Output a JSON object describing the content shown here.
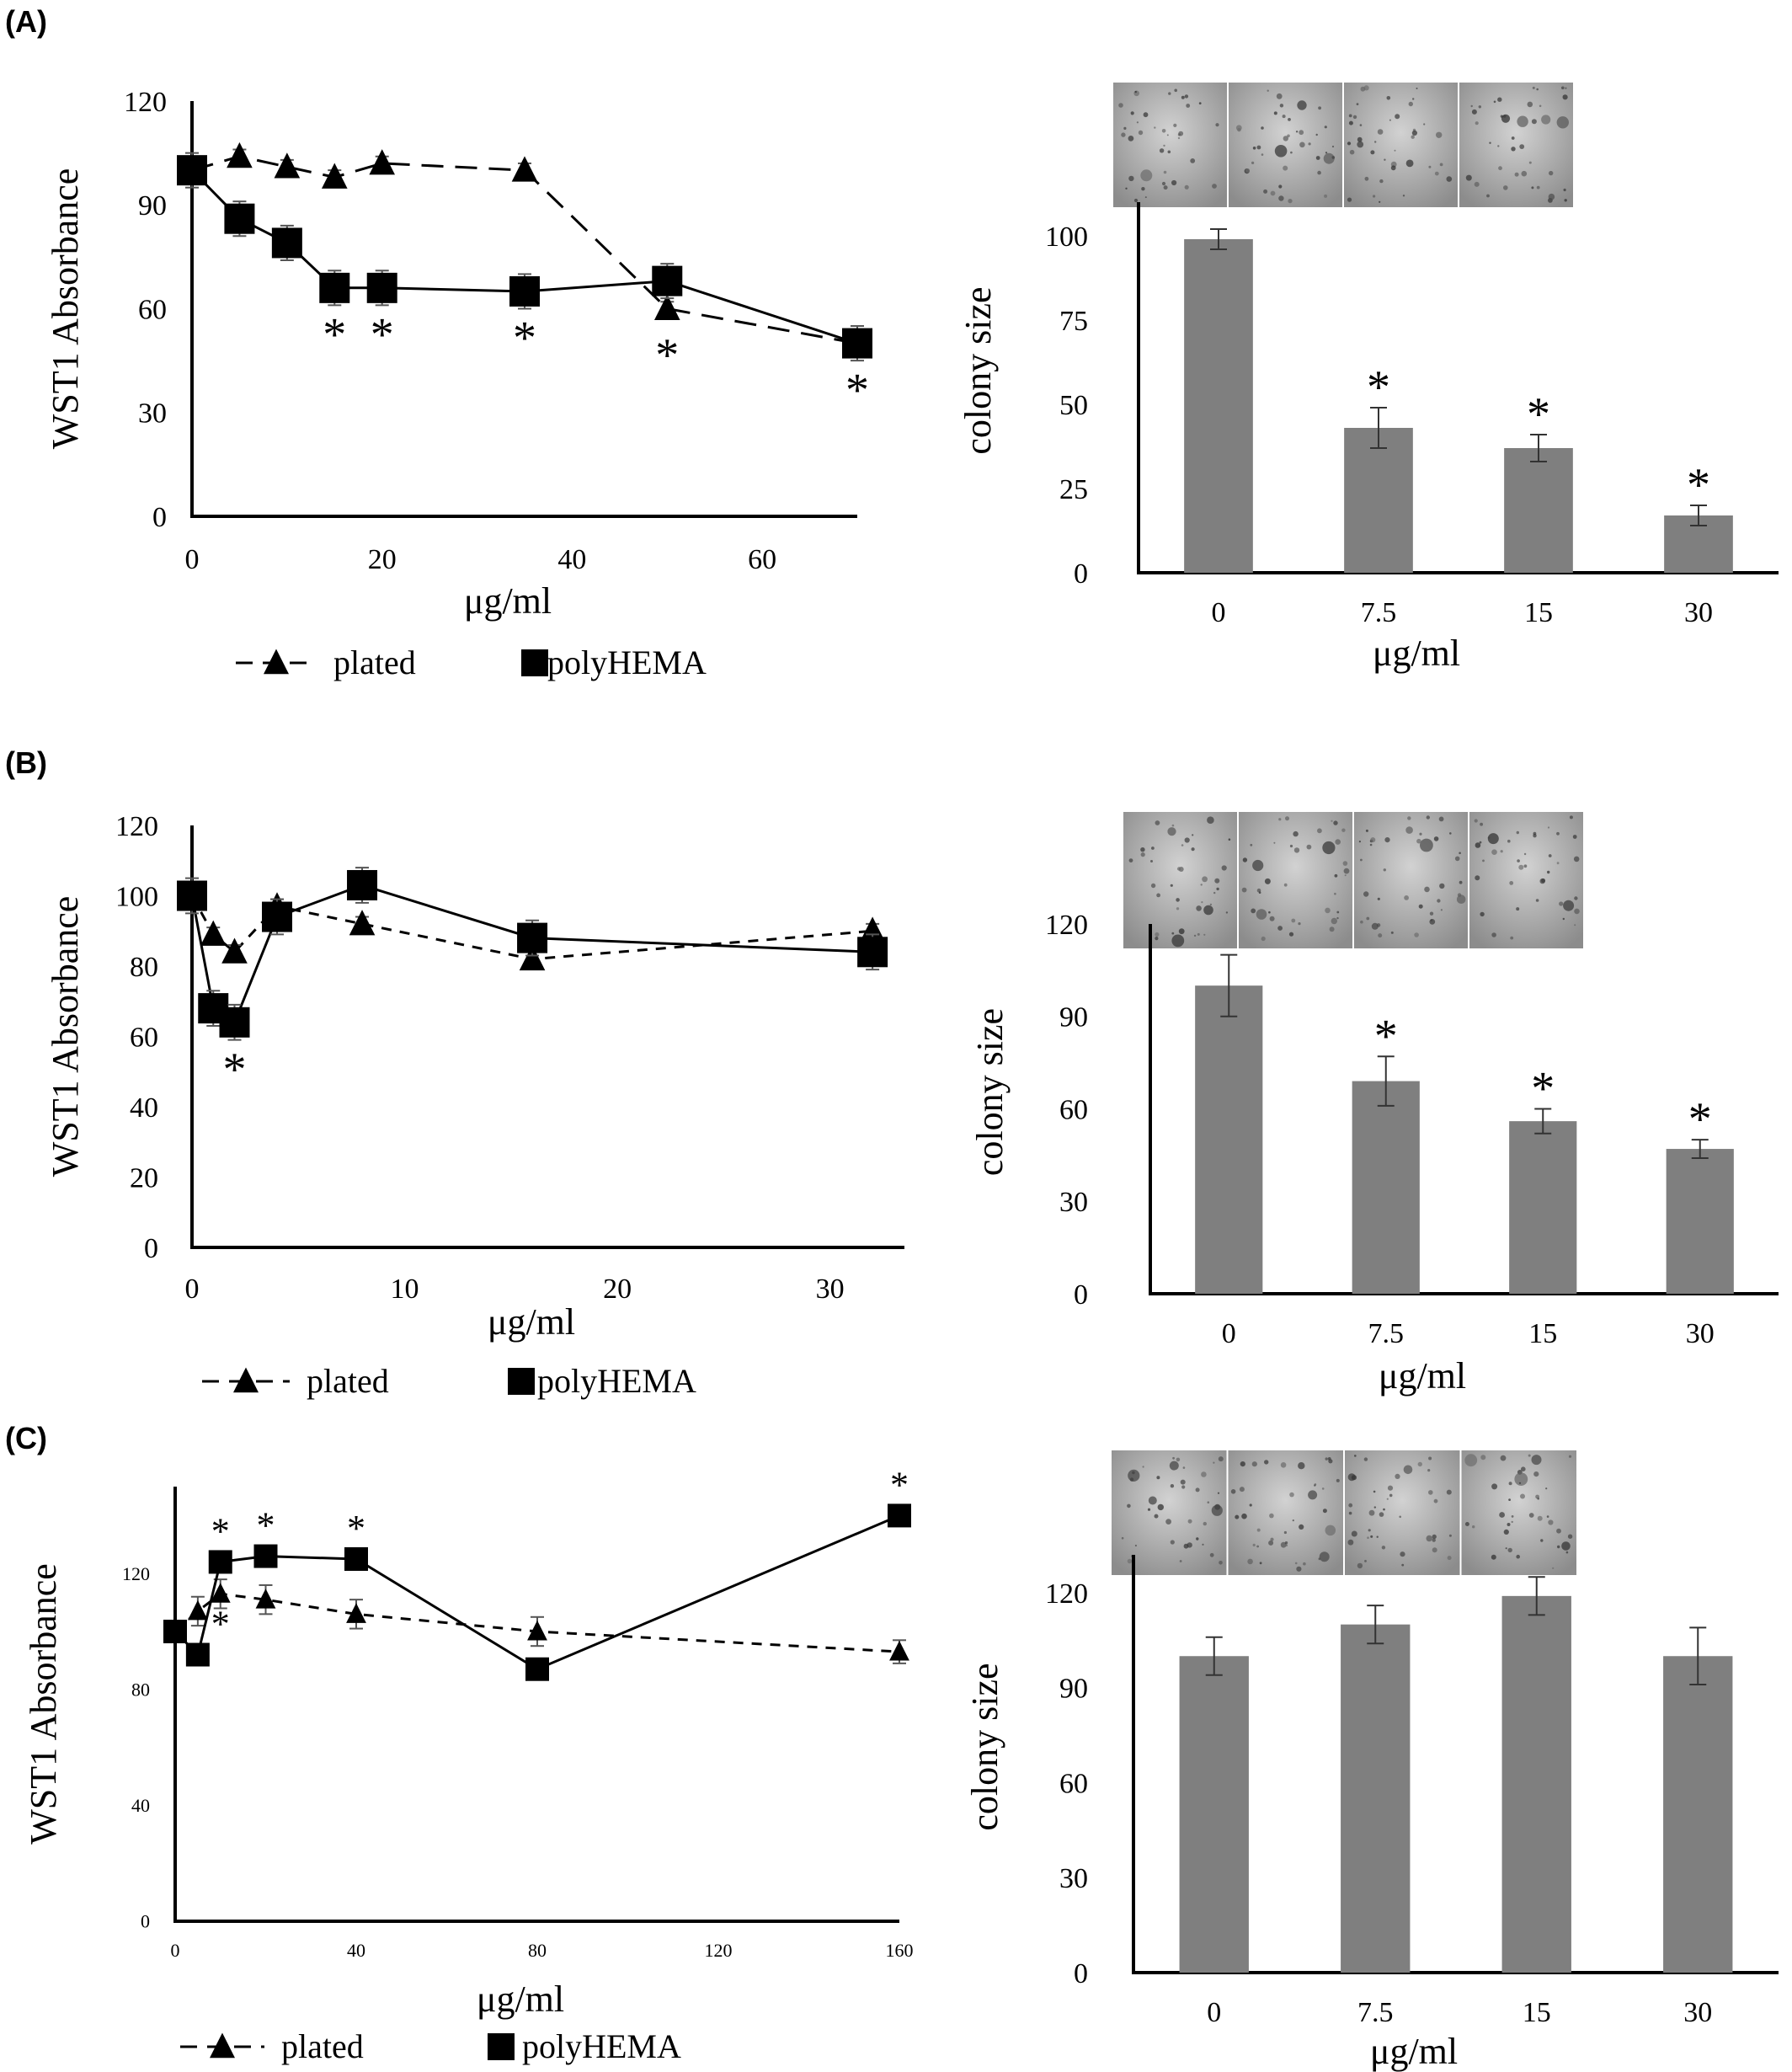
{
  "panels": [
    {
      "label": "(A)"
    },
    {
      "label": "(B)"
    },
    {
      "label": "(C)"
    }
  ],
  "legend": {
    "plated": "plated",
    "polyhema": "polyHEMA"
  },
  "colors": {
    "bar": "#7f7f7f",
    "line": "#000000"
  },
  "chart_data": [
    {
      "id": "A-line",
      "type": "line",
      "title": "",
      "xlabel": "μg/ml",
      "ylabel": "WST1 Absorbance",
      "xlim": [
        0,
        70
      ],
      "ylim": [
        0,
        120
      ],
      "xticks": [
        0,
        20,
        40,
        60
      ],
      "yticks": [
        0,
        30,
        60,
        90,
        120
      ],
      "legend_position": "bottom",
      "grid": false,
      "series": [
        {
          "name": "plated",
          "key": "plated",
          "marker": "triangle",
          "dash": "dashed",
          "x": [
            0,
            5,
            10,
            15,
            20,
            35,
            50,
            70
          ],
          "y": [
            100,
            104,
            101,
            98,
            102,
            100,
            60,
            50
          ],
          "err": [
            4,
            2,
            2,
            2,
            2,
            2,
            2,
            3
          ],
          "annotations": [
            {
              "x": 50,
              "y": 60,
              "text": "*"
            }
          ]
        },
        {
          "name": "polyHEMA",
          "key": "polyhema",
          "marker": "square",
          "dash": "solid",
          "x": [
            0,
            5,
            10,
            15,
            20,
            35,
            50,
            70
          ],
          "y": [
            100,
            86,
            79,
            66,
            66,
            65,
            68,
            50
          ],
          "err": [
            5,
            5,
            5,
            5,
            5,
            5,
            5,
            5
          ],
          "annotations": [
            {
              "x": 15,
              "y": 66,
              "text": "*"
            },
            {
              "x": 20,
              "y": 66,
              "text": "*"
            },
            {
              "x": 35,
              "y": 65,
              "text": "*"
            },
            {
              "x": 70,
              "y": 50,
              "text": "*"
            }
          ]
        }
      ]
    },
    {
      "id": "A-bar",
      "type": "bar",
      "title": "",
      "xlabel": "μg/ml",
      "ylabel": "colony size",
      "categories": [
        "0",
        "7.5",
        "15",
        "30"
      ],
      "values": [
        99,
        43,
        37,
        17
      ],
      "errors": [
        3,
        6,
        4,
        3
      ],
      "stars": [
        "",
        "*",
        "*",
        "*"
      ],
      "ylim": [
        0,
        110
      ],
      "yticks": [
        0,
        25,
        50,
        75,
        100
      ],
      "grid": false
    },
    {
      "id": "B-line",
      "type": "line",
      "title": "",
      "xlabel": "μg/ml",
      "ylabel": "WST1 Absorbance",
      "xlim": [
        0,
        33.5
      ],
      "ylim": [
        0,
        120
      ],
      "xticks": [
        0,
        10,
        20,
        30
      ],
      "yticks": [
        0,
        20,
        40,
        60,
        80,
        100,
        120
      ],
      "legend_position": "bottom",
      "grid": false,
      "series": [
        {
          "name": "plated",
          "key": "plated",
          "marker": "triangle",
          "dash": "dashed",
          "x": [
            0,
            1,
            2,
            4,
            8,
            16,
            32
          ],
          "y": [
            100,
            89,
            84,
            97,
            92,
            82,
            90
          ],
          "err": [
            2,
            2,
            2,
            2,
            2,
            2,
            2
          ],
          "annotations": []
        },
        {
          "name": "polyHEMA",
          "key": "polyhema",
          "marker": "square",
          "dash": "solid",
          "x": [
            0,
            1,
            2,
            4,
            8,
            16,
            32
          ],
          "y": [
            100,
            68,
            64,
            94,
            103,
            88,
            84
          ],
          "err": [
            5,
            5,
            5,
            5,
            5,
            5,
            5
          ],
          "annotations": [
            {
              "x": 2,
              "y": 64,
              "text": "*"
            }
          ]
        }
      ]
    },
    {
      "id": "B-bar",
      "type": "bar",
      "title": "",
      "xlabel": "μg/ml",
      "ylabel": "colony size",
      "categories": [
        "0",
        "7.5",
        "15",
        "30"
      ],
      "values": [
        100,
        69,
        56,
        47
      ],
      "errors": [
        10,
        8,
        4,
        3
      ],
      "stars": [
        "",
        "*",
        "*",
        "*"
      ],
      "ylim": [
        0,
        120
      ],
      "yticks": [
        0,
        30,
        60,
        90,
        120
      ],
      "grid": false
    },
    {
      "id": "C-line",
      "type": "line",
      "title": "",
      "xlabel": "μg/ml",
      "ylabel": "WST1 Absorbance",
      "xlim": [
        0,
        160
      ],
      "ylim": [
        0,
        150
      ],
      "xticks": [
        0,
        40,
        80,
        120,
        160
      ],
      "yticks": [
        0,
        40,
        80,
        120
      ],
      "legend_position": "bottom",
      "grid": false,
      "series": [
        {
          "name": "plated",
          "key": "plated",
          "marker": "triangle",
          "dash": "dashed",
          "x": [
            0,
            5,
            10,
            20,
            40,
            80,
            160
          ],
          "y": [
            100,
            107,
            113,
            111,
            106,
            100,
            93
          ],
          "err": [
            3,
            5,
            5,
            5,
            5,
            5,
            4
          ],
          "annotations": [
            {
              "x": 10,
              "y": 113,
              "text": "*",
              "below": true
            }
          ]
        },
        {
          "name": "polyHEMA",
          "key": "polyhema",
          "marker": "square",
          "dash": "solid",
          "x": [
            0,
            5,
            10,
            20,
            40,
            80,
            160
          ],
          "y": [
            100,
            92,
            124,
            126,
            125,
            87,
            140
          ],
          "err": [
            3,
            3,
            3,
            3,
            3,
            3,
            3
          ],
          "annotations": [
            {
              "x": 10,
              "y": 124,
              "text": "*"
            },
            {
              "x": 20,
              "y": 126,
              "text": "*"
            },
            {
              "x": 40,
              "y": 125,
              "text": "*"
            },
            {
              "x": 160,
              "y": 140,
              "text": "*"
            }
          ]
        }
      ]
    },
    {
      "id": "C-bar",
      "type": "bar",
      "title": "",
      "xlabel": "μg/ml",
      "ylabel": "colony size",
      "categories": [
        "0",
        "7.5",
        "15",
        "30"
      ],
      "values": [
        100,
        110,
        119,
        100
      ],
      "errors": [
        6,
        6,
        6,
        9
      ],
      "stars": [
        "",
        "",
        "",
        ""
      ],
      "ylim": [
        0,
        132
      ],
      "yticks": [
        0,
        30,
        60,
        90,
        120
      ],
      "grid": false
    }
  ]
}
